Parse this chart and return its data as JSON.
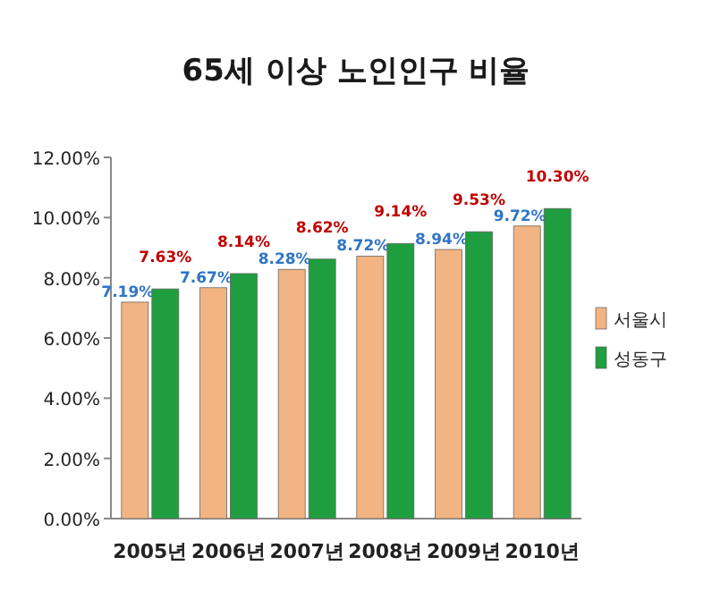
{
  "chart_data": {
    "type": "bar",
    "title": "65세 이상 노인인구 비율",
    "categories": [
      "2005년",
      "2006년",
      "2007년",
      "2008년",
      "2009년",
      "2010년"
    ],
    "series": [
      {
        "name": "서울시",
        "color": "#f2b482",
        "values": [
          7.19,
          7.67,
          8.28,
          8.72,
          8.94,
          9.72
        ],
        "value_labels": [
          "7.19%",
          "7.67%",
          "8.28%",
          "8.72%",
          "8.94%",
          "9.72%"
        ]
      },
      {
        "name": "성동구",
        "color": "#1e9e3e",
        "values": [
          7.63,
          8.14,
          8.62,
          9.14,
          9.53,
          10.3
        ],
        "value_labels": [
          "7.63%",
          "8.14%",
          "8.62%",
          "9.14%",
          "9.53%",
          "10.30%"
        ]
      }
    ],
    "ylim": [
      0,
      12
    ],
    "yticks": [
      {
        "value": 0,
        "label": "0.00%"
      },
      {
        "value": 2,
        "label": "2.00%"
      },
      {
        "value": 4,
        "label": "4.00%"
      },
      {
        "value": 6,
        "label": "6.00%"
      },
      {
        "value": 8,
        "label": "8.00%"
      },
      {
        "value": 10,
        "label": "10.00%"
      },
      {
        "value": 12,
        "label": "12.00%"
      }
    ],
    "legend": "right"
  }
}
